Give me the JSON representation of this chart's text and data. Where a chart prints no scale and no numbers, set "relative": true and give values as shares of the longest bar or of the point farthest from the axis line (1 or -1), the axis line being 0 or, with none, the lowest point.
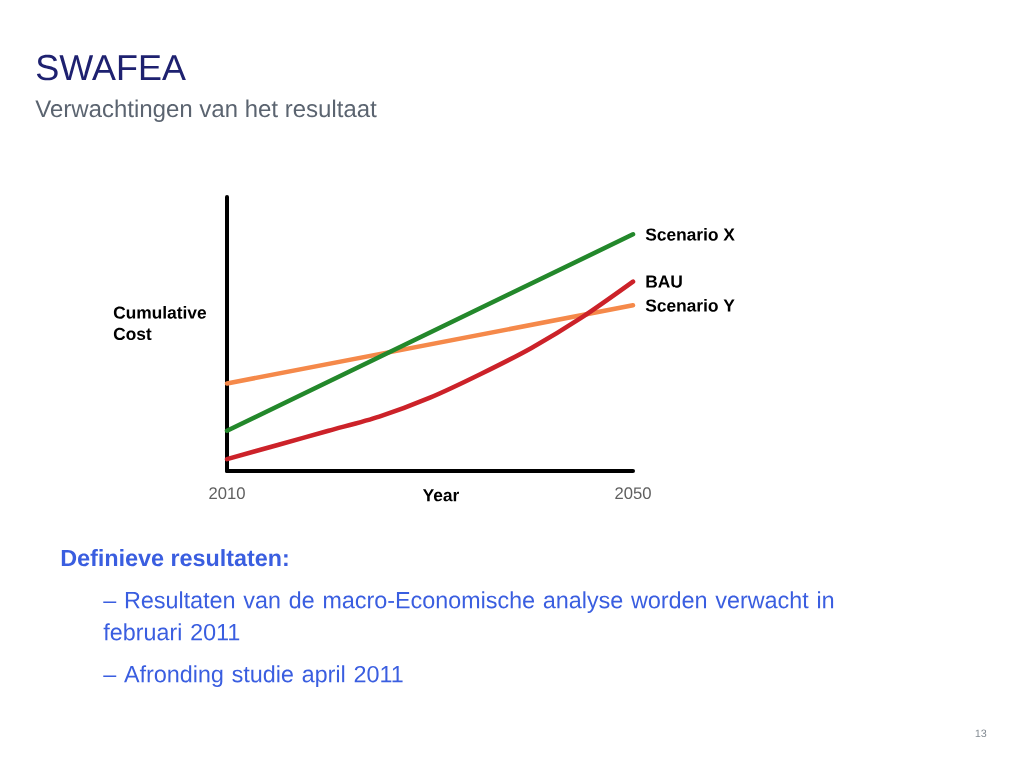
{
  "chart_data": {
    "type": "line",
    "title": "SWAFEA",
    "subtitle": "Verwachtingen van het resultaat",
    "xlabel": "Year",
    "ylabel": "Cumulative Cost",
    "relative": true,
    "tick_labels": "x",
    "x": [
      2010,
      2050
    ],
    "xlim": [
      2010,
      2050
    ],
    "xticks": [
      2010,
      2050
    ],
    "series": [
      {
        "name": "Scenario Y",
        "color": "#f5894a",
        "values": [
          0.37,
          0.7
        ]
      },
      {
        "name": "Scenario X",
        "color": "#23882b",
        "values": [
          0.17,
          1.0
        ]
      },
      {
        "name": "BAU",
        "color": "#cc2229",
        "x": [
          2010,
          2015,
          2020,
          2025,
          2030,
          2035,
          2040,
          2045,
          2050
        ],
        "values": [
          0.05,
          0.11,
          0.17,
          0.23,
          0.31,
          0.41,
          0.52,
          0.65,
          0.8
        ]
      }
    ],
    "annotations": [
      "Definieve resultaten:",
      "– Resultaten van de macro-Economische analyse worden verwacht in februari 2011",
      "– Afronding studie april 2011",
      "13"
    ]
  }
}
